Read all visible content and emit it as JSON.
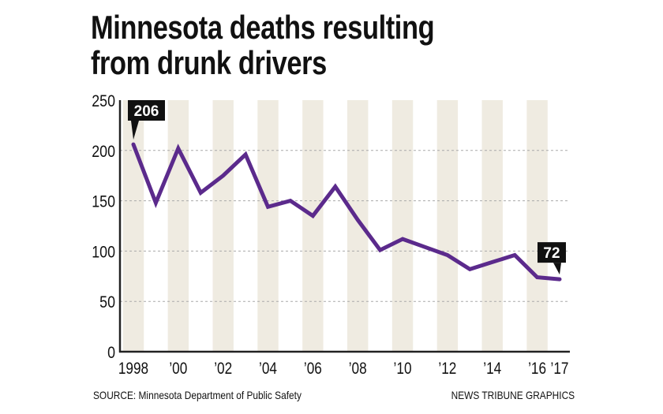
{
  "title_line1": "Minnesota deaths resulting",
  "title_line2": "from drunk drivers",
  "source": "SOURCE: Minnesota Department of Public Safety",
  "credit": "NEWS TRIBUNE GRAPHICS",
  "chart_data": {
    "type": "line",
    "x": [
      1998,
      1999,
      2000,
      2001,
      2002,
      2003,
      2004,
      2005,
      2006,
      2007,
      2008,
      2009,
      2010,
      2011,
      2012,
      2013,
      2014,
      2015,
      2016,
      2017
    ],
    "values": [
      206,
      148,
      202,
      158,
      175,
      196,
      144,
      150,
      135,
      164,
      131,
      101,
      112,
      104,
      96,
      82,
      89,
      96,
      74,
      72
    ],
    "ylim": [
      0,
      250
    ],
    "xlim": [
      1998,
      2017
    ],
    "yticks": [
      0,
      50,
      100,
      150,
      200,
      250
    ],
    "xtick_labels": [
      {
        "x": 1998,
        "label": "1998"
      },
      {
        "x": 2000,
        "label": "’00"
      },
      {
        "x": 2002,
        "label": "’02"
      },
      {
        "x": 2004,
        "label": "’04"
      },
      {
        "x": 2006,
        "label": "’06"
      },
      {
        "x": 2008,
        "label": "’08"
      },
      {
        "x": 2010,
        "label": "’10"
      },
      {
        "x": 2012,
        "label": "’12"
      },
      {
        "x": 2014,
        "label": "’14"
      },
      {
        "x": 2016,
        "label": "’16"
      },
      {
        "x": 2017,
        "label": "’17"
      }
    ],
    "annotations": [
      {
        "x": 1998,
        "label": "206"
      },
      {
        "x": 2017,
        "label": "72"
      }
    ],
    "grid": "horizontal dashed",
    "line_color": "#5b2a8c",
    "stripe_color": "#efebe1"
  }
}
